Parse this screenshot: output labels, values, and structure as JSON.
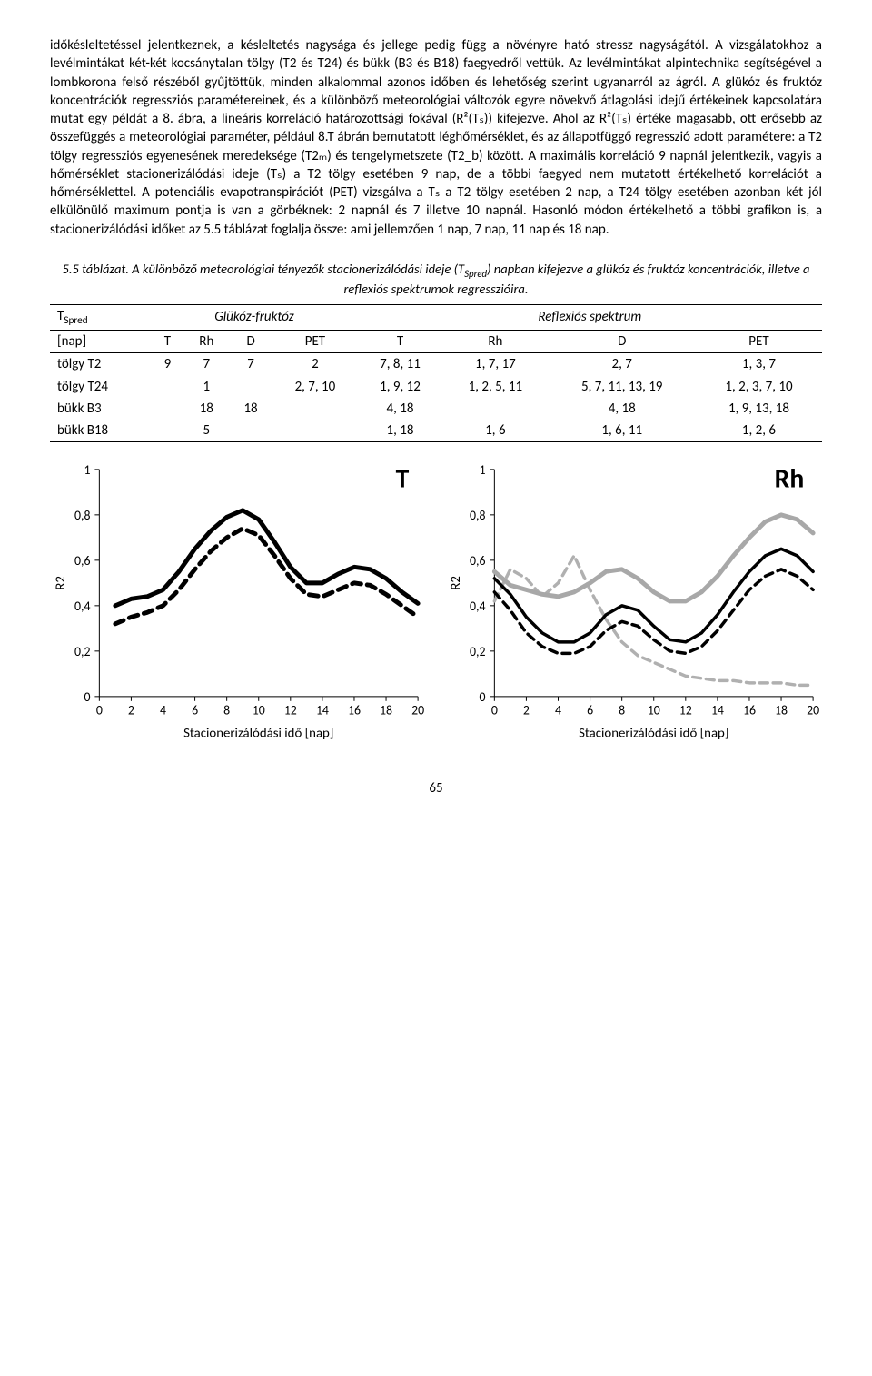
{
  "body_paragraph": "időkésleltetéssel jelentkeznek, a késleltetés nagysága és jellege pedig függ a növényre ható stressz nagyságától.\nA vizsgálatokhoz a levélmintákat két-két kocsánytalan tölgy (T2 és T24) és bükk (B3 és B18) faegyedről vettük. Az levélmintákat alpintechnika segítségével a lombkorona felső részéből gyűjtöttük, minden alkalommal azonos időben és lehetőség szerint ugyanarról az ágról.\nA glükóz és fruktóz koncentrációk regressziós paramétereinek, és a különböző meteorológiai változók egyre növekvő átlagolási idejű értékeinek kapcsolatára mutat egy példát a 8. ábra, a lineáris korreláció határozottsági fokával (R²(Tₛ)) kifejezve. Ahol az R²(Tₛ) értéke magasabb, ott erősebb az összefüggés a meteorológiai paraméter, például 8.T ábrán bemutatott léghőmérséklet, és az állapotfüggő regresszió adott paramétere: a T2 tölgy regressziós egyenesének meredeksége (T2ₘ) és tengelymetszete (T2_b) között. A maximális korreláció 9 napnál jelentkezik, vagyis a hőmérséklet stacionerizálódási ideje (Tₛ) a T2 tölgy esetében 9 nap, de a többi faegyed nem mutatott értékelhető korrelációt a hőmérséklettel. A potenciális evapotranspirációt (PET) vizsgálva a Tₛ a T2 tölgy esetében 2 nap, a T24 tölgy esetében azonban két jól elkülönülő maximum pontja is van a görbéknek: 2 napnál és 7 illetve 10 napnál. Hasonló módon értékelhető a többi grafikon is, a stacionerizálódási időket az 5.5 táblázat foglalja össze: ami jellemzően 1 nap, 7 nap, 11 nap és 18 nap.",
  "table_caption": "5.5 táblázat. A különböző meteorológiai tényezők stacionerizálódási ideje (T_Spred) napban kifejezve a glükóz és fruktóz koncentrációk, illetve a reflexiós spektrumok regresszióira.",
  "table": {
    "header_group1": "Glükóz-fruktóz",
    "header_group2": "Reflexiós spektrum",
    "corner_label": "T_Spred",
    "corner_unit": "[nap]",
    "cols_g1": [
      "T",
      "Rh",
      "D",
      "PET"
    ],
    "cols_g2": [
      "T",
      "Rh",
      "D",
      "PET"
    ],
    "rows": [
      {
        "label": "tölgy T2",
        "g1": [
          "9",
          "7",
          "7",
          "2"
        ],
        "g2": [
          "7, 8, 11",
          "1, 7, 17",
          "2, 7",
          "1, 3, 7"
        ]
      },
      {
        "label": "tölgy T24",
        "g1": [
          "",
          "1",
          "",
          "2, 7, 10"
        ],
        "g2": [
          "1, 9, 12",
          "1, 2, 5, 11",
          "5, 7, 11, 13, 19",
          "1, 2, 3, 7, 10"
        ]
      },
      {
        "label": "bükk B3",
        "g1": [
          "",
          "18",
          "18",
          ""
        ],
        "g2": [
          "4, 18",
          "",
          "4, 18",
          "1, 9, 13, 18"
        ]
      },
      {
        "label": "bükk B18",
        "g1": [
          "",
          "5",
          "",
          ""
        ],
        "g2": [
          "1, 18",
          "1, 6",
          "1, 6, 11",
          "1, 2, 6"
        ]
      }
    ]
  },
  "charts": {
    "x_label": "Stacionerizálódási idő [nap]",
    "y_label": "R2",
    "xlim": [
      0,
      20
    ],
    "ylim": [
      0,
      1
    ],
    "xticks": [
      0,
      2,
      4,
      6,
      8,
      10,
      12,
      14,
      16,
      18,
      20
    ],
    "yticks": [
      0,
      0.2,
      0.4,
      0.6,
      0.8,
      1
    ],
    "ytick_labels": [
      "0",
      "0,2",
      "0,4",
      "0,6",
      "0,8",
      "1"
    ],
    "left": {
      "title": "T",
      "series": [
        {
          "name": "solid-black",
          "color": "#000000",
          "width": 5,
          "dash": "none",
          "points": [
            [
              1,
              0.4
            ],
            [
              2,
              0.43
            ],
            [
              3,
              0.44
            ],
            [
              4,
              0.47
            ],
            [
              5,
              0.55
            ],
            [
              6,
              0.65
            ],
            [
              7,
              0.73
            ],
            [
              8,
              0.79
            ],
            [
              9,
              0.82
            ],
            [
              10,
              0.78
            ],
            [
              11,
              0.68
            ],
            [
              12,
              0.57
            ],
            [
              13,
              0.5
            ],
            [
              14,
              0.5
            ],
            [
              15,
              0.54
            ],
            [
              16,
              0.57
            ],
            [
              17,
              0.56
            ],
            [
              18,
              0.52
            ],
            [
              19,
              0.46
            ],
            [
              20,
              0.41
            ]
          ]
        },
        {
          "name": "dashed-black",
          "color": "#000000",
          "width": 5,
          "dash": "10,7",
          "points": [
            [
              1,
              0.32
            ],
            [
              2,
              0.35
            ],
            [
              3,
              0.37
            ],
            [
              4,
              0.4
            ],
            [
              5,
              0.47
            ],
            [
              6,
              0.56
            ],
            [
              7,
              0.64
            ],
            [
              8,
              0.7
            ],
            [
              9,
              0.74
            ],
            [
              10,
              0.71
            ],
            [
              11,
              0.62
            ],
            [
              12,
              0.52
            ],
            [
              13,
              0.45
            ],
            [
              14,
              0.44
            ],
            [
              15,
              0.47
            ],
            [
              16,
              0.5
            ],
            [
              17,
              0.49
            ],
            [
              18,
              0.45
            ],
            [
              19,
              0.4
            ],
            [
              20,
              0.35
            ]
          ]
        }
      ]
    },
    "right": {
      "title": "Rh",
      "series": [
        {
          "name": "dashed-gray",
          "color": "#b0b0b0",
          "width": 3.5,
          "dash": "9,6",
          "points": [
            [
              0,
              0.42
            ],
            [
              1,
              0.56
            ],
            [
              2,
              0.52
            ],
            [
              3,
              0.44
            ],
            [
              4,
              0.5
            ],
            [
              5,
              0.62
            ],
            [
              6,
              0.47
            ],
            [
              7,
              0.34
            ],
            [
              8,
              0.24
            ],
            [
              9,
              0.18
            ],
            [
              10,
              0.15
            ],
            [
              11,
              0.12
            ],
            [
              12,
              0.09
            ],
            [
              13,
              0.08
            ],
            [
              14,
              0.07
            ],
            [
              15,
              0.07
            ],
            [
              16,
              0.06
            ],
            [
              17,
              0.06
            ],
            [
              18,
              0.06
            ],
            [
              19,
              0.05
            ],
            [
              20,
              0.05
            ]
          ]
        },
        {
          "name": "solid-gray",
          "color": "#a8a8a8",
          "width": 5,
          "dash": "none",
          "points": [
            [
              0,
              0.55
            ],
            [
              1,
              0.49
            ],
            [
              2,
              0.47
            ],
            [
              3,
              0.45
            ],
            [
              4,
              0.44
            ],
            [
              5,
              0.46
            ],
            [
              6,
              0.5
            ],
            [
              7,
              0.55
            ],
            [
              8,
              0.56
            ],
            [
              9,
              0.52
            ],
            [
              10,
              0.46
            ],
            [
              11,
              0.42
            ],
            [
              12,
              0.42
            ],
            [
              13,
              0.46
            ],
            [
              14,
              0.53
            ],
            [
              15,
              0.62
            ],
            [
              16,
              0.7
            ],
            [
              17,
              0.77
            ],
            [
              18,
              0.8
            ],
            [
              19,
              0.78
            ],
            [
              20,
              0.72
            ]
          ]
        },
        {
          "name": "solid-black",
          "color": "#000000",
          "width": 3.5,
          "dash": "none",
          "points": [
            [
              0,
              0.52
            ],
            [
              1,
              0.45
            ],
            [
              2,
              0.35
            ],
            [
              3,
              0.28
            ],
            [
              4,
              0.24
            ],
            [
              5,
              0.24
            ],
            [
              6,
              0.28
            ],
            [
              7,
              0.36
            ],
            [
              8,
              0.4
            ],
            [
              9,
              0.38
            ],
            [
              10,
              0.31
            ],
            [
              11,
              0.25
            ],
            [
              12,
              0.24
            ],
            [
              13,
              0.28
            ],
            [
              14,
              0.36
            ],
            [
              15,
              0.46
            ],
            [
              16,
              0.55
            ],
            [
              17,
              0.62
            ],
            [
              18,
              0.65
            ],
            [
              19,
              0.62
            ],
            [
              20,
              0.55
            ]
          ]
        },
        {
          "name": "dashed-black",
          "color": "#000000",
          "width": 3.5,
          "dash": "9,6",
          "points": [
            [
              0,
              0.46
            ],
            [
              1,
              0.38
            ],
            [
              2,
              0.28
            ],
            [
              3,
              0.22
            ],
            [
              4,
              0.19
            ],
            [
              5,
              0.19
            ],
            [
              6,
              0.22
            ],
            [
              7,
              0.29
            ],
            [
              8,
              0.33
            ],
            [
              9,
              0.31
            ],
            [
              10,
              0.25
            ],
            [
              11,
              0.2
            ],
            [
              12,
              0.19
            ],
            [
              13,
              0.22
            ],
            [
              14,
              0.29
            ],
            [
              15,
              0.38
            ],
            [
              16,
              0.47
            ],
            [
              17,
              0.53
            ],
            [
              18,
              0.56
            ],
            [
              19,
              0.53
            ],
            [
              20,
              0.47
            ]
          ]
        }
      ]
    }
  },
  "page_number": "65"
}
